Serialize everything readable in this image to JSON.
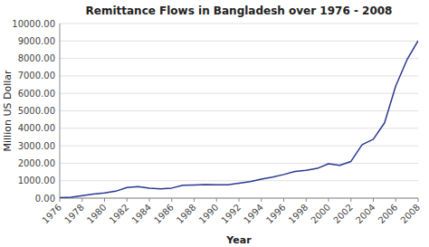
{
  "chart_data": {
    "type": "line",
    "title": "Remittance Flows in Bangladesh over 1976 - 2008",
    "x_label": "Year",
    "y_label": "Million US Dollar",
    "x": [
      1976,
      1977,
      1978,
      1979,
      1980,
      1981,
      1982,
      1983,
      1984,
      1985,
      1986,
      1987,
      1988,
      1989,
      1990,
      1991,
      1992,
      1993,
      1994,
      1995,
      1996,
      1997,
      1998,
      1999,
      2000,
      2001,
      2002,
      2003,
      2004,
      2005,
      2006,
      2007,
      2008
    ],
    "values": [
      23,
      49,
      140,
      234,
      303,
      397,
      611,
      662,
      570,
      531,
      576,
      737,
      748,
      771,
      761,
      764,
      858,
      944,
      1088,
      1202,
      1354,
      1525,
      1598,
      1706,
      1968,
      1882,
      2101,
      3062,
      3372,
      4314,
      6425,
      7915,
      9021
    ],
    "color": "#2B3990",
    "xlim": [
      1976,
      2008
    ],
    "xticks": [
      1976,
      1978,
      1980,
      1982,
      1984,
      1986,
      1988,
      1990,
      1992,
      1994,
      1996,
      1998,
      2000,
      2002,
      2004,
      2006,
      2008
    ],
    "ylim": [
      0,
      10000
    ],
    "yticks": [
      {
        "value": 0,
        "label": "0.00"
      },
      {
        "value": 1000,
        "label": "1000.00"
      },
      {
        "value": 2000,
        "label": "2000.00"
      },
      {
        "value": 3000,
        "label": "3000.00"
      },
      {
        "value": 4000,
        "label": "4000.00"
      },
      {
        "value": 5000,
        "label": "5000.00"
      },
      {
        "value": 6000,
        "label": "6000.00"
      },
      {
        "value": 7000,
        "label": "7000.00"
      },
      {
        "value": 8000,
        "label": "8000.00"
      },
      {
        "value": 9000,
        "label": "9000.00"
      },
      {
        "value": 10000,
        "label": "10000.00"
      }
    ],
    "grid": true
  }
}
